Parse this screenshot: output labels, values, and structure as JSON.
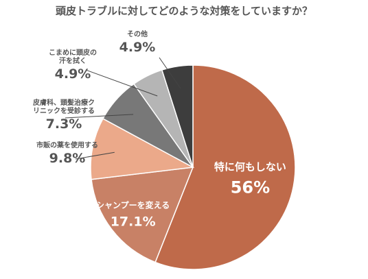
{
  "chart_data": {
    "type": "pie",
    "title": "頭皮トラブルに対してどのような対策をしていますか？",
    "slices": [
      {
        "label": "特に何もしない",
        "value": 56,
        "display": "56%",
        "color": "#bf6a4a"
      },
      {
        "label": "シャンプーを変える",
        "value": 17.1,
        "display": "17.1%",
        "color": "#c88166"
      },
      {
        "label": "市販の薬を使用する",
        "value": 9.8,
        "display": "9.8%",
        "color": "#eba98a"
      },
      {
        "label_lines": [
          "皮膚科、頭髪治療ク",
          "リニックを受診する"
        ],
        "value": 7.3,
        "display": "7.3%",
        "color": "#787878"
      },
      {
        "label_lines": [
          "こまめに頭皮の",
          "汗を拭く"
        ],
        "value": 4.9,
        "display": "4.9%",
        "color": "#b5b5b5"
      },
      {
        "label": "その他",
        "value": 4.9,
        "display": "4.9%",
        "color": "#3d3d3d"
      }
    ]
  }
}
